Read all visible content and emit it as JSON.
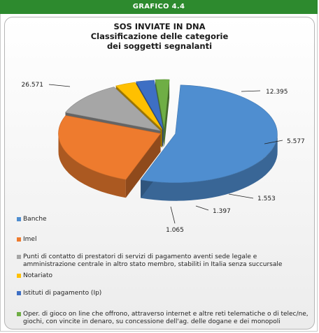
{
  "header": {
    "figure_tag": "GRAFICO 4.4"
  },
  "chart_data": {
    "type": "pie",
    "title": "SOS INVIATE IN DNA",
    "subtitle_lines": [
      "Classificazione delle categorie",
      "dei soggetti segnalanti"
    ],
    "legend_placement": "bottom",
    "exploded": true,
    "three_d": true,
    "slices": [
      {
        "label": "Banche",
        "value": 26571,
        "value_label": "26.571",
        "color": "#4f8ed0"
      },
      {
        "label": "Imel",
        "value": 12395,
        "value_label": "12.395",
        "color": "#ee7b2e"
      },
      {
        "label": "Punti di contatto di prestatori di servizi di pagamento aventi sede legale e amministrazione centrale in altro stato membro, stabiliti in Italia senza succursale",
        "value": 5577,
        "value_label": "5.577",
        "color": "#a6a6a6"
      },
      {
        "label": "Notariato",
        "value": 1553,
        "value_label": "1.553",
        "color": "#ffc000"
      },
      {
        "label": "Istituti di pagamento (Ip)",
        "value": 1397,
        "value_label": "1.397",
        "color": "#3e6fc4"
      },
      {
        "label": "Oper. di gioco on line che offrono, attraverso internet e altre reti telematiche o di telec/ne, giochi, con vincite in denaro, su concessione dell'ag. delle dogane e dei monopoli",
        "value": 1065,
        "value_label": "1.065",
        "color": "#6fae45"
      }
    ]
  }
}
